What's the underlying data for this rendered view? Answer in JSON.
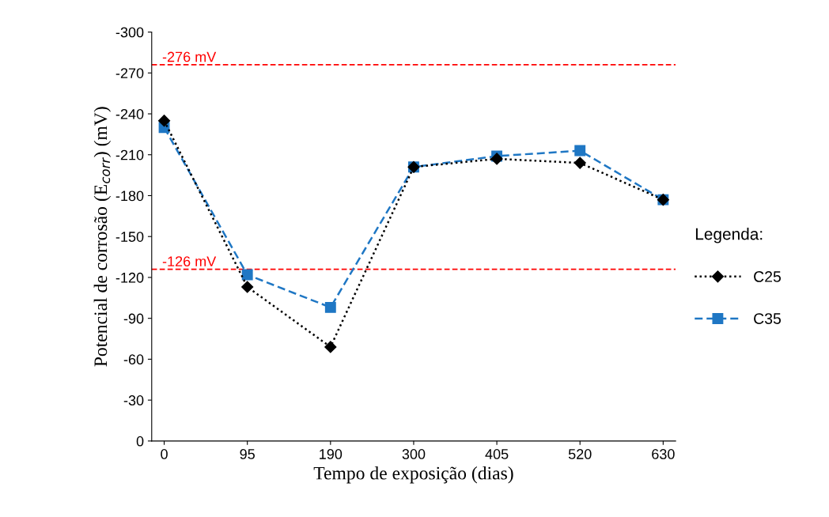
{
  "chart_data": {
    "type": "line",
    "xlabel": "Tempo de exposição (dias)",
    "ylabel": "Potencial de corrosão (E$_{corr}$) (mV)",
    "categories": [
      "0",
      "95",
      "190",
      "300",
      "405",
      "520",
      "630"
    ],
    "series": [
      {
        "name": "C25",
        "color": "#000000",
        "marker": "diamond",
        "line_style": "dotted",
        "values": [
          -235,
          -113,
          -69,
          -201,
          -207,
          -204,
          -177
        ]
      },
      {
        "name": "C35",
        "color": "#1f77c4",
        "marker": "square",
        "line_style": "dashed",
        "values": [
          -230,
          -122,
          -98,
          -201,
          -209,
          -213,
          -177
        ]
      }
    ],
    "ylim": [
      0,
      -300
    ],
    "yticks": [
      0,
      -30,
      -60,
      -90,
      -120,
      -150,
      -180,
      -210,
      -240,
      -270,
      -300
    ],
    "ref_lines": [
      {
        "axis": "y",
        "value": -276,
        "label": "-276 mV",
        "color": "#ff0000",
        "line_style": "dashed"
      },
      {
        "axis": "y",
        "value": -126,
        "label": "-126 mV",
        "color": "#ff0000",
        "line_style": "dashed"
      }
    ],
    "legend": "right",
    "legend_title": "Legenda:",
    "grid": false
  }
}
